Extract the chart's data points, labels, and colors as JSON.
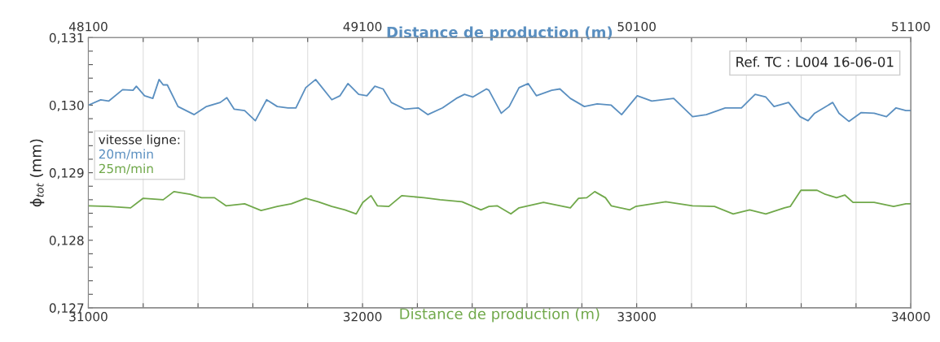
{
  "chart_data": {
    "type": "line",
    "xlabel": "Distance de production (m)",
    "x2label": "Distance de production (m)",
    "ylabel": "ϕ$_{tot}$ (mm)",
    "legend_title": "vitesse ligne:",
    "legend": "left",
    "annotations": [
      "Ref. TC : L004 16-06-01"
    ],
    "grid": "x",
    "line_style": "solid",
    "marker": "none",
    "xlim": [
      31000,
      34000
    ],
    "xticks": [
      31000,
      {
        "value": 31200,
        "label": null
      },
      {
        "value": 31400,
        "label": null
      },
      {
        "value": 31600,
        "label": null
      },
      {
        "value": 31800,
        "label": null
      },
      32000,
      {
        "value": 32200,
        "label": null
      },
      {
        "value": 32400,
        "label": null
      },
      {
        "value": 32600,
        "label": null
      },
      {
        "value": 32800,
        "label": null
      },
      33000,
      {
        "value": 33200,
        "label": null
      },
      {
        "value": 33400,
        "label": null
      },
      {
        "value": 33600,
        "label": null
      },
      {
        "value": 33800,
        "label": null
      },
      34000
    ],
    "x2lim": [
      48100,
      51100
    ],
    "x2ticks": [
      48100,
      {
        "value": 48300,
        "label": null
      },
      {
        "value": 48500,
        "label": null
      },
      {
        "value": 48700,
        "label": null
      },
      {
        "value": 48900,
        "label": null
      },
      49100,
      {
        "value": 49300,
        "label": null
      },
      {
        "value": 49500,
        "label": null
      },
      {
        "value": 49700,
        "label": null
      },
      {
        "value": 49900,
        "label": null
      },
      50100,
      {
        "value": 50300,
        "label": null
      },
      {
        "value": 50500,
        "label": null
      },
      {
        "value": 50700,
        "label": null
      },
      {
        "value": 50900,
        "label": null
      },
      51100
    ],
    "ylim": [
      0.127,
      0.131
    ],
    "yticks": [
      {
        "value": 0.127,
        "label": "0,127"
      },
      {
        "value": 0.1272,
        "label": null
      },
      {
        "value": 0.1274,
        "label": null
      },
      {
        "value": 0.1276,
        "label": null
      },
      {
        "value": 0.1278,
        "label": null
      },
      {
        "value": 0.128,
        "label": "0,128"
      },
      {
        "value": 0.1282,
        "label": null
      },
      {
        "value": 0.1284,
        "label": null
      },
      {
        "value": 0.1286,
        "label": null
      },
      {
        "value": 0.1288,
        "label": null
      },
      {
        "value": 0.129,
        "label": "0,129"
      },
      {
        "value": 0.1292,
        "label": null
      },
      {
        "value": 0.1294,
        "label": null
      },
      {
        "value": 0.1296,
        "label": null
      },
      {
        "value": 0.1298,
        "label": null
      },
      {
        "value": 0.13,
        "label": "0,130"
      },
      {
        "value": 0.1302,
        "label": null
      },
      {
        "value": 0.1304,
        "label": null
      },
      {
        "value": 0.1306,
        "label": null
      },
      {
        "value": 0.1308,
        "label": null
      },
      {
        "value": 0.131,
        "label": "0,131"
      }
    ],
    "series": [
      {
        "name": "20m/min",
        "color": "#5a8fc0",
        "axis": "x2",
        "x": [
          48100,
          48145,
          48174,
          48225,
          48263,
          48275,
          48305,
          48335,
          48358,
          48373,
          48388,
          48427,
          48486,
          48531,
          48581,
          48605,
          48632,
          48670,
          48709,
          48750,
          48789,
          48828,
          48857,
          48893,
          48929,
          48988,
          49018,
          49047,
          49086,
          49116,
          49145,
          49175,
          49205,
          49255,
          49303,
          49338,
          49392,
          49442,
          49472,
          49502,
          49552,
          49561,
          49606,
          49635,
          49671,
          49704,
          49734,
          49790,
          49820,
          49858,
          49909,
          49956,
          50007,
          50045,
          50102,
          50155,
          50235,
          50304,
          50354,
          50423,
          50482,
          50532,
          50571,
          50601,
          50654,
          50696,
          50725,
          50749,
          50815,
          50838,
          50874,
          50919,
          50966,
          51011,
          51046,
          51082,
          51100
        ],
        "values": [
          0.13,
          0.13008,
          0.13006,
          0.13023,
          0.13022,
          0.13028,
          0.13014,
          0.1301,
          0.13038,
          0.1303,
          0.1303,
          0.12998,
          0.12986,
          0.12998,
          0.13004,
          0.13011,
          0.12994,
          0.12992,
          0.12977,
          0.13008,
          0.12998,
          0.12996,
          0.12996,
          0.13026,
          0.13038,
          0.13008,
          0.13014,
          0.13032,
          0.13016,
          0.13014,
          0.13028,
          0.13024,
          0.13004,
          0.12994,
          0.12996,
          0.12986,
          0.12996,
          0.1301,
          0.13016,
          0.13012,
          0.13024,
          0.13022,
          0.12988,
          0.12998,
          0.13026,
          0.13032,
          0.13014,
          0.13022,
          0.13024,
          0.1301,
          0.12998,
          0.13002,
          0.13,
          0.12986,
          0.13014,
          0.13006,
          0.1301,
          0.12983,
          0.12986,
          0.12996,
          0.12996,
          0.13016,
          0.13012,
          0.12998,
          0.13004,
          0.12983,
          0.12977,
          0.12988,
          0.13004,
          0.12988,
          0.12976,
          0.12989,
          0.12988,
          0.12983,
          0.12996,
          0.12992,
          0.12992
        ]
      },
      {
        "name": "25m/min",
        "color": "#70a84a",
        "x": [
          31000,
          31074,
          31154,
          31199,
          31273,
          31312,
          31371,
          31413,
          31460,
          31502,
          31570,
          31630,
          31689,
          31740,
          31793,
          31838,
          31888,
          31936,
          31977,
          32001,
          32031,
          32054,
          32096,
          32143,
          32224,
          32283,
          32363,
          32432,
          32461,
          32491,
          32541,
          32571,
          32660,
          32758,
          32788,
          32818,
          32847,
          32886,
          32907,
          32975,
          32996,
          33106,
          33204,
          33284,
          33352,
          33412,
          33471,
          33539,
          33560,
          33599,
          33658,
          33688,
          33729,
          33759,
          33789,
          33866,
          33937,
          33982,
          34000
        ],
        "values": [
          0.12851,
          0.1285,
          0.12848,
          0.12862,
          0.1286,
          0.12872,
          0.12868,
          0.12863,
          0.12863,
          0.12851,
          0.12854,
          0.12844,
          0.1285,
          0.12854,
          0.12862,
          0.12857,
          0.1285,
          0.12845,
          0.12839,
          0.12856,
          0.12866,
          0.12851,
          0.1285,
          0.12866,
          0.12863,
          0.1286,
          0.12857,
          0.12845,
          0.1285,
          0.12851,
          0.12839,
          0.12848,
          0.12856,
          0.12848,
          0.12862,
          0.12863,
          0.12872,
          0.12863,
          0.12851,
          0.12845,
          0.1285,
          0.12857,
          0.12851,
          0.1285,
          0.12839,
          0.12845,
          0.12839,
          0.12848,
          0.1285,
          0.12874,
          0.12874,
          0.12868,
          0.12863,
          0.12867,
          0.12856,
          0.12856,
          0.1285,
          0.12854,
          0.12854
        ]
      }
    ]
  }
}
